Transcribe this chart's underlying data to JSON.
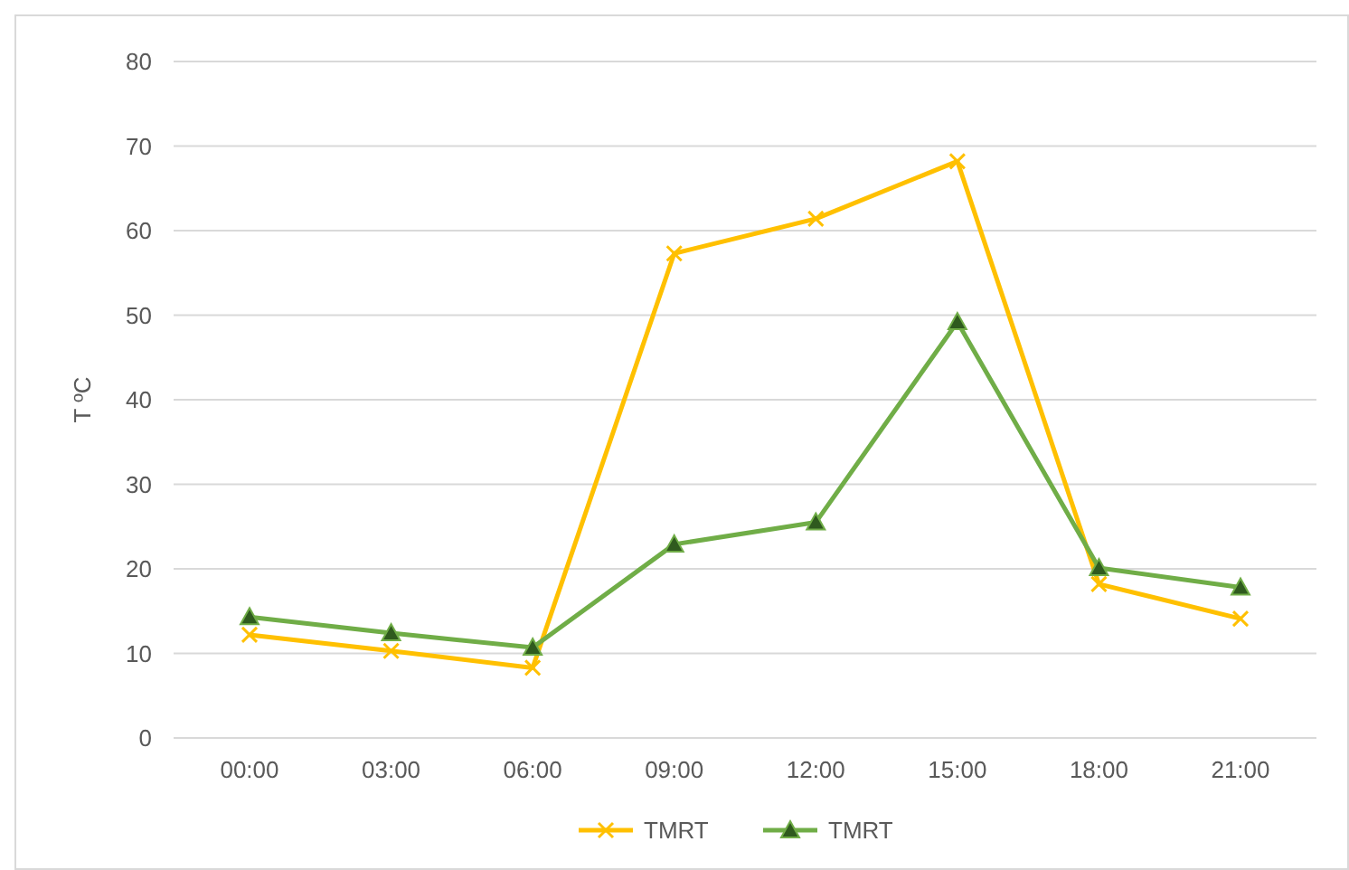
{
  "chart_data": {
    "type": "line",
    "ylabel": "T ºC",
    "categories": [
      "00:00",
      "03:00",
      "06:00",
      "09:00",
      "12:00",
      "15:00",
      "18:00",
      "21:00"
    ],
    "series": [
      {
        "name": "TMRT",
        "color": "#ffc000",
        "marker": "cross",
        "values": [
          12.2,
          10.3,
          8.3,
          57.3,
          61.4,
          68.2,
          18.2,
          14.1
        ]
      },
      {
        "name": "TMRT",
        "color": "#70ad47",
        "marker": "triangle",
        "values": [
          14.3,
          12.4,
          10.7,
          22.9,
          25.5,
          49.2,
          20.1,
          17.8
        ]
      }
    ],
    "ylim": [
      0,
      80
    ],
    "yticks": [
      0,
      10,
      20,
      30,
      40,
      50,
      60,
      70,
      80
    ],
    "grid": "y",
    "legend": "bottom",
    "line_style": "solid"
  }
}
